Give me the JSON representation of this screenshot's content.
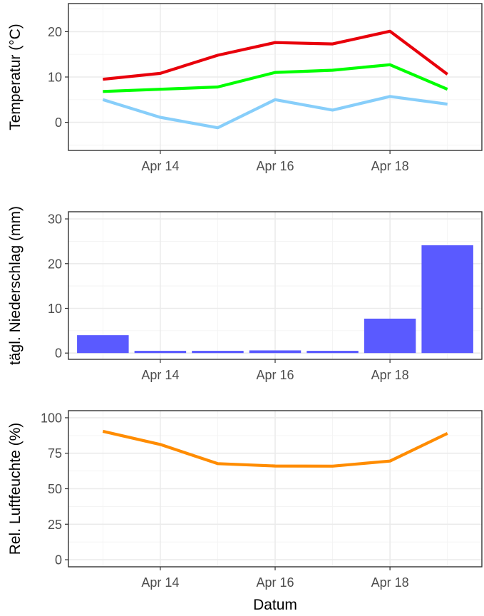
{
  "chart_data": [
    {
      "type": "line",
      "ylabel": "Temperatur (°C)",
      "xlabel": "",
      "x": [
        "2024-04-13",
        "2024-04-14",
        "2024-04-15",
        "2024-04-16",
        "2024-04-17",
        "2024-04-18",
        "2024-04-19"
      ],
      "x_ticks": [
        "Apr 14",
        "Apr 16",
        "Apr 18"
      ],
      "y_ticks": [
        "0",
        "10",
        "20"
      ],
      "ylim": [
        -6.2,
        26.2
      ],
      "grid": true,
      "series": [
        {
          "values": [
            9.5,
            10.8,
            14.8,
            17.6,
            17.3,
            20.1,
            10.6
          ],
          "color": "#e8000b"
        },
        {
          "values": [
            6.8,
            7.3,
            7.8,
            11.0,
            11.5,
            12.7,
            7.3
          ],
          "color": "#00ff00"
        },
        {
          "values": [
            5.0,
            1.1,
            -1.2,
            5.0,
            2.7,
            5.7,
            4.0
          ],
          "color": "#87cefa"
        }
      ]
    },
    {
      "type": "bar",
      "ylabel": "tägl. Niederschlag (mm)",
      "xlabel": "",
      "x": [
        "2024-04-13",
        "2024-04-14",
        "2024-04-15",
        "2024-04-16",
        "2024-04-17",
        "2024-04-18",
        "2024-04-19"
      ],
      "x_ticks": [
        "Apr 14",
        "Apr 16",
        "Apr 18"
      ],
      "y_ticks": [
        "0",
        "10",
        "20",
        "30"
      ],
      "values": [
        4.0,
        0.5,
        0.5,
        0.6,
        0.5,
        7.7,
        24.1
      ],
      "ylim": [
        -1.4,
        31.6
      ],
      "grid": true,
      "color": "#5a5aff"
    },
    {
      "type": "line",
      "ylabel": "Rel. Luftfeuchte (%)",
      "xlabel": "Datum",
      "x": [
        "2024-04-13",
        "2024-04-14",
        "2024-04-15",
        "2024-04-16",
        "2024-04-17",
        "2024-04-18",
        "2024-04-19"
      ],
      "x_ticks": [
        "Apr 14",
        "Apr 16",
        "Apr 18"
      ],
      "y_ticks": [
        "0",
        "25",
        "50",
        "75",
        "100"
      ],
      "ylim": [
        -5,
        105
      ],
      "grid": true,
      "series": [
        {
          "values": [
            90.5,
            81.2,
            67.7,
            66.0,
            65.9,
            69.5,
            89.0
          ],
          "color": "#ff8c00"
        }
      ]
    }
  ]
}
